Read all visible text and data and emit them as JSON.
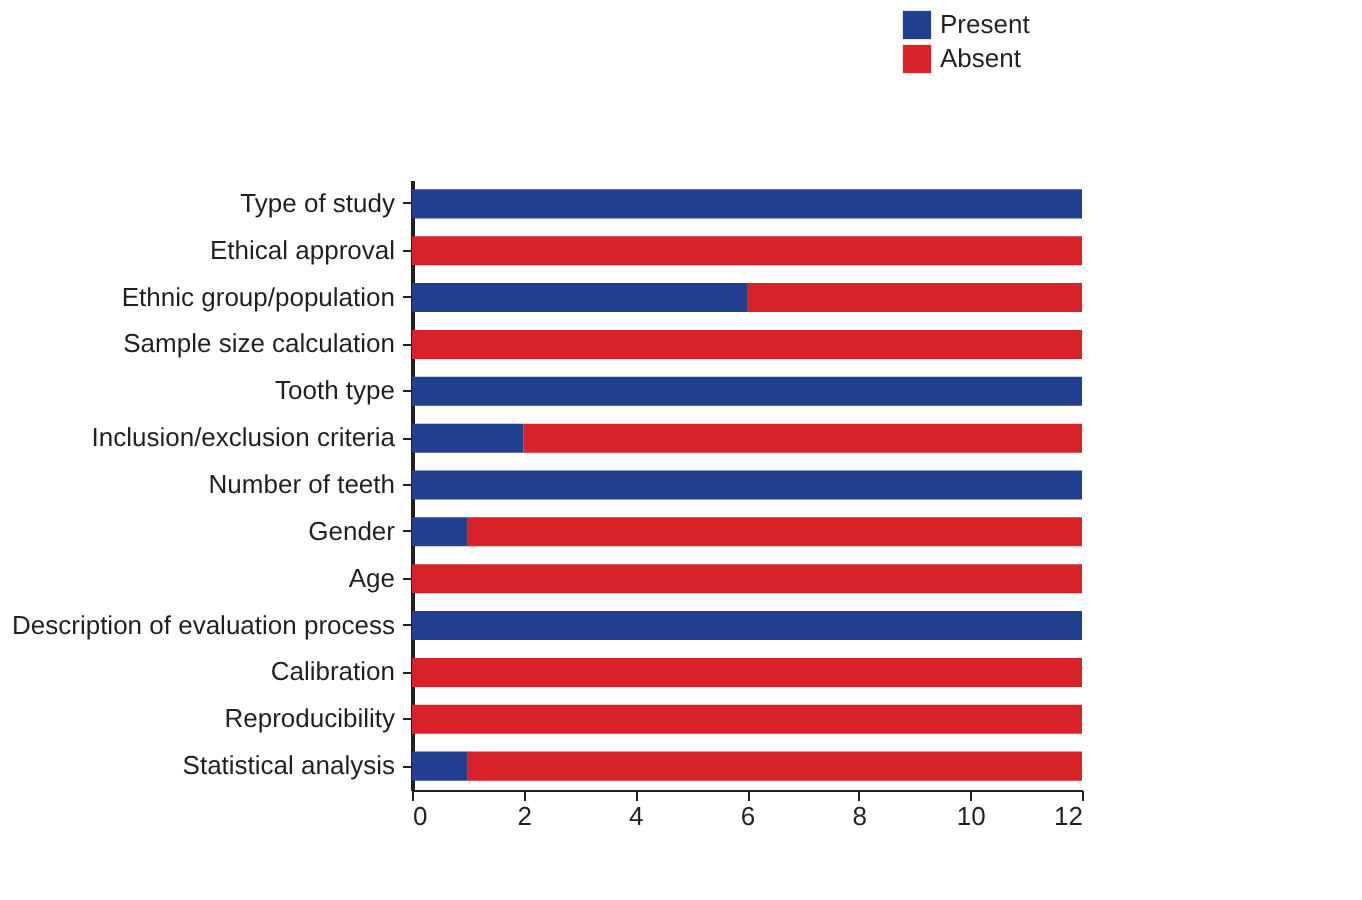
{
  "chart_data": {
    "type": "bar",
    "orientation": "horizontal",
    "stacked": true,
    "categories": [
      "Type of study",
      "Ethical approval",
      "Ethnic group/population",
      "Sample size calculation",
      "Tooth type",
      "Inclusion/exclusion criteria",
      "Number of teeth",
      "Gender",
      "Age",
      "Description of evaluation process",
      "Calibration",
      "Reproducibility",
      "Statistical analysis"
    ],
    "series": [
      {
        "name": "Present",
        "color": "#233f8f",
        "values": [
          12,
          0,
          6,
          0,
          12,
          2,
          12,
          1,
          0,
          12,
          0,
          0,
          1
        ]
      },
      {
        "name": "Absent",
        "color": "#d7222a",
        "values": [
          0,
          12,
          6,
          12,
          0,
          10,
          0,
          11,
          12,
          0,
          12,
          12,
          11
        ]
      }
    ],
    "xlim": [
      0,
      12
    ],
    "xticks": [
      0,
      2,
      4,
      6,
      8,
      10,
      12
    ],
    "grid": false,
    "legend": "top right"
  }
}
